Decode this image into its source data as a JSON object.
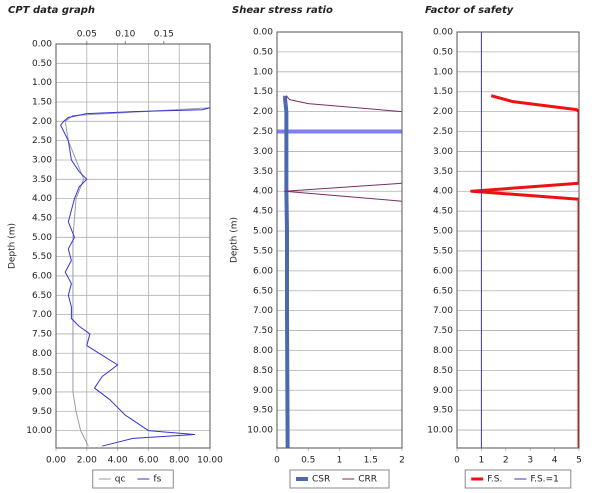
{
  "chart_data": [
    {
      "type": "line",
      "title": "CPT data graph",
      "ylabel": "Depth (m)",
      "y_inverted": true,
      "grid": true,
      "xgrid": true,
      "legend": "bottom",
      "ylim": [
        0,
        10.45
      ],
      "yticks": [
        {
          "value": 0,
          "label": "0.00"
        },
        {
          "value": 0.5,
          "label": "0.50"
        },
        {
          "value": 1,
          "label": "1.00"
        },
        {
          "value": 1.5,
          "label": "1.50"
        },
        {
          "value": 2,
          "label": "2.00"
        },
        {
          "value": 2.5,
          "label": "2.50"
        },
        {
          "value": 3,
          "label": "3.00"
        },
        {
          "value": 3.5,
          "label": "3.50"
        },
        {
          "value": 4,
          "label": "4.00"
        },
        {
          "value": 4.5,
          "label": "4.50"
        },
        {
          "value": 5,
          "label": "5.00"
        },
        {
          "value": 5.5,
          "label": "5.50"
        },
        {
          "value": 6,
          "label": "6.00"
        },
        {
          "value": 6.5,
          "label": "6.50"
        },
        {
          "value": 7,
          "label": "7.00"
        },
        {
          "value": 7.5,
          "label": "7.50"
        },
        {
          "value": 8,
          "label": "8.00"
        },
        {
          "value": 8.5,
          "label": "8.50"
        },
        {
          "value": 9,
          "label": "9.00"
        },
        {
          "value": 9.5,
          "label": "9.50"
        },
        {
          "value": 10,
          "label": "10.00"
        }
      ],
      "xlim": [
        0,
        10
      ],
      "xticks": [
        {
          "value": 0,
          "label": "0.00"
        },
        {
          "value": 2,
          "label": "2.00"
        },
        {
          "value": 4,
          "label": "4.00"
        },
        {
          "value": 6,
          "label": "6.00"
        },
        {
          "value": 8,
          "label": "8.00"
        },
        {
          "value": 10,
          "label": "10.00"
        }
      ],
      "x2lim": [
        0.01,
        0.21
      ],
      "x2ticks": [
        0.05,
        {
          "value": 0.1,
          "label": "0.10"
        },
        0.15
      ],
      "series": [
        {
          "name": "qc",
          "color": "#9a9aae",
          "width": 1,
          "depth": [
            1.65,
            1.75,
            1.85,
            2.0,
            2.5,
            3.0,
            3.5,
            4.0,
            5.0,
            6.0,
            7.0,
            8.0,
            9.0,
            9.5,
            10.0,
            10.4
          ],
          "values": [
            10,
            5.6,
            1.1,
            0.6,
            0.8,
            1.3,
            1.8,
            1.3,
            1.1,
            1.1,
            1.1,
            1.1,
            1.1,
            1.3,
            1.6,
            2.1
          ]
        },
        {
          "name": "fs",
          "color": "#3535d0",
          "width": 1,
          "axis": "x2",
          "depth": [
            1.65,
            1.7,
            1.75,
            1.8,
            1.9,
            2.0,
            2.1,
            2.5,
            3.0,
            3.3,
            3.5,
            3.7,
            4.0,
            4.3,
            4.6,
            5.0,
            5.3,
            5.6,
            5.9,
            6.2,
            6.5,
            6.8,
            7.1,
            7.3,
            7.5,
            7.8,
            8.0,
            8.3,
            8.6,
            8.9,
            9.2,
            9.6,
            10.0,
            10.1,
            10.2,
            10.4
          ],
          "values": [
            0.21,
            0.2,
            0.11,
            0.05,
            0.026,
            0.02,
            0.016,
            0.026,
            0.03,
            0.04,
            0.05,
            0.04,
            0.034,
            0.03,
            0.026,
            0.034,
            0.026,
            0.03,
            0.022,
            0.03,
            0.026,
            0.03,
            0.03,
            0.04,
            0.054,
            0.05,
            0.066,
            0.09,
            0.07,
            0.06,
            0.08,
            0.1,
            0.13,
            0.19,
            0.11,
            0.07
          ]
        }
      ]
    },
    {
      "type": "line",
      "title": "Shear stress ratio",
      "ylabel": "Depth (m)",
      "y_inverted": true,
      "grid": true,
      "xgrid": false,
      "legend": "bottom",
      "ylim": [
        0,
        10.45
      ],
      "yticks": [
        {
          "value": 0,
          "label": "0.00"
        },
        {
          "value": 0.5,
          "label": "0.50"
        },
        {
          "value": 1,
          "label": "1.00"
        },
        {
          "value": 1.5,
          "label": "1.50"
        },
        {
          "value": 2,
          "label": "2.00"
        },
        {
          "value": 2.5,
          "label": "2.50"
        },
        {
          "value": 3,
          "label": "3.00"
        },
        {
          "value": 3.5,
          "label": "3.50"
        },
        {
          "value": 4,
          "label": "4.00"
        },
        {
          "value": 4.5,
          "label": "4.50"
        },
        {
          "value": 5,
          "label": "5.00"
        },
        {
          "value": 5.5,
          "label": "5.50"
        },
        {
          "value": 6,
          "label": "6.00"
        },
        {
          "value": 6.5,
          "label": "6.50"
        },
        {
          "value": 7,
          "label": "7.00"
        },
        {
          "value": 7.5,
          "label": "7.50"
        },
        {
          "value": 8,
          "label": "8.00"
        },
        {
          "value": 8.5,
          "label": "8.50"
        },
        {
          "value": 9,
          "label": "9.00"
        },
        {
          "value": 9.5,
          "label": "9.50"
        },
        {
          "value": 10,
          "label": "10.00"
        }
      ],
      "xlim": [
        0,
        2
      ],
      "xticks": [
        0,
        0.5,
        1,
        1.5,
        2
      ],
      "water_table": 2.5,
      "water_table_color": "#7f7ff5",
      "series": [
        {
          "name": "CSR",
          "color": "#4b68b0",
          "width": 4,
          "depth": [
            1.6,
            1.7,
            2.0,
            3.0,
            4.0,
            5.0,
            7.0,
            10.45
          ],
          "values": [
            0.13,
            0.13,
            0.15,
            0.15,
            0.15,
            0.16,
            0.16,
            0.17
          ]
        },
        {
          "name": "CRR",
          "color": "#7a2e62",
          "width": 1,
          "depth": [
            1.6,
            1.7,
            1.8,
            2.0,
            3.8,
            4.0,
            4.25,
            10.45
          ],
          "values": [
            0.15,
            0.2,
            0.5,
            2,
            2,
            0.12,
            2,
            2
          ]
        }
      ]
    },
    {
      "type": "line",
      "title": "Factor of safety",
      "y_inverted": true,
      "grid": true,
      "xgrid": false,
      "legend": "bottom",
      "ylim": [
        0,
        10.45
      ],
      "yticks": [
        {
          "value": 0,
          "label": "0.00"
        },
        {
          "value": 0.5,
          "label": "0.50"
        },
        {
          "value": 1,
          "label": "1.00"
        },
        {
          "value": 1.5,
          "label": "1.50"
        },
        {
          "value": 2,
          "label": "2.00"
        },
        {
          "value": 2.5,
          "label": "2.50"
        },
        {
          "value": 3,
          "label": "3.00"
        },
        {
          "value": 3.5,
          "label": "3.50"
        },
        {
          "value": 4,
          "label": "4.00"
        },
        {
          "value": 4.5,
          "label": "4.50"
        },
        {
          "value": 5,
          "label": "5.00"
        },
        {
          "value": 5.5,
          "label": "5.50"
        },
        {
          "value": 6,
          "label": "6.00"
        },
        {
          "value": 6.5,
          "label": "6.50"
        },
        {
          "value": 7,
          "label": "7.00"
        },
        {
          "value": 7.5,
          "label": "7.50"
        },
        {
          "value": 8,
          "label": "8.00"
        },
        {
          "value": 8.5,
          "label": "8.50"
        },
        {
          "value": 9,
          "label": "9.00"
        },
        {
          "value": 9.5,
          "label": "9.50"
        },
        {
          "value": 10,
          "label": "10.00"
        }
      ],
      "xlim": [
        0,
        5
      ],
      "xticks": [
        0,
        1,
        2,
        3,
        4,
        5
      ],
      "series": [
        {
          "name": "F.S.",
          "color": "#ee1111",
          "width": 3,
          "depth": [
            1.6,
            1.75,
            1.95,
            2.0,
            3.8,
            4.0,
            4.2,
            10.45
          ],
          "values": [
            1.4,
            2.3,
            4.9,
            5,
            5,
            0.6,
            5,
            5
          ]
        },
        {
          "name": "F.S.=1",
          "color": "#3333cc",
          "width": 1,
          "depth": [
            0,
            10.45
          ],
          "values": [
            1,
            1
          ]
        }
      ]
    }
  ]
}
